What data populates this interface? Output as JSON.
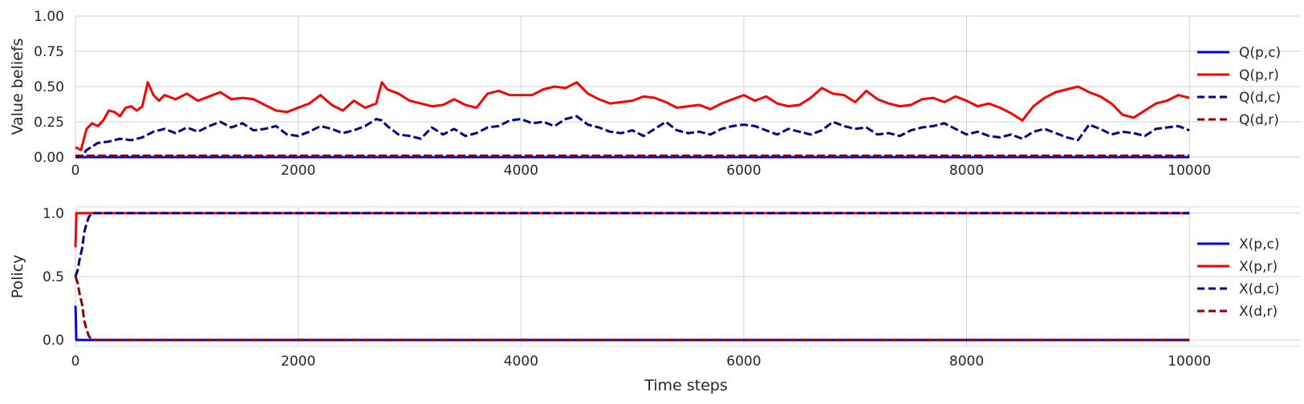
{
  "chart_data": [
    {
      "type": "line",
      "ylabel": "Value beliefs",
      "xlabel": "",
      "xlim": [
        0,
        11000
      ],
      "ylim": [
        0,
        1
      ],
      "x_ticks": [
        "0",
        "2000",
        "4000",
        "6000",
        "8000",
        "10000"
      ],
      "y_ticks": [
        "0.00",
        "0.25",
        "0.50",
        "0.75",
        "1.00"
      ],
      "grid": true,
      "legend_position": "right",
      "series": [
        {
          "name": "Q(p,c)",
          "color": "#0000ff",
          "dash": "solid",
          "x": [
            0,
            10000
          ],
          "y": [
            0.0,
            0.0
          ]
        },
        {
          "name": "Q(p,r)",
          "color": "#ff0000",
          "dash": "solid",
          "x": [
            0,
            50,
            100,
            150,
            200,
            250,
            300,
            350,
            400,
            450,
            500,
            550,
            600,
            650,
            700,
            750,
            800,
            900,
            1000,
            1100,
            1200,
            1300,
            1400,
            1500,
            1600,
            1700,
            1800,
            1900,
            2000,
            2100,
            2200,
            2300,
            2400,
            2500,
            2600,
            2700,
            2750,
            2800,
            2900,
            3000,
            3100,
            3200,
            3300,
            3400,
            3500,
            3600,
            3700,
            3800,
            3900,
            4000,
            4100,
            4200,
            4300,
            4400,
            4500,
            4600,
            4700,
            4800,
            4900,
            5000,
            5100,
            5200,
            5300,
            5400,
            5500,
            5600,
            5700,
            5800,
            5900,
            6000,
            6100,
            6200,
            6300,
            6400,
            6500,
            6600,
            6700,
            6800,
            6900,
            7000,
            7100,
            7200,
            7300,
            7400,
            7500,
            7600,
            7700,
            7800,
            7900,
            8000,
            8100,
            8200,
            8300,
            8400,
            8500,
            8600,
            8700,
            8800,
            8900,
            9000,
            9100,
            9200,
            9300,
            9400,
            9500,
            9600,
            9700,
            9800,
            9900,
            10000
          ],
          "y": [
            0.07,
            0.05,
            0.2,
            0.24,
            0.22,
            0.26,
            0.33,
            0.32,
            0.29,
            0.35,
            0.36,
            0.33,
            0.36,
            0.53,
            0.44,
            0.4,
            0.44,
            0.41,
            0.45,
            0.4,
            0.43,
            0.46,
            0.41,
            0.42,
            0.41,
            0.37,
            0.33,
            0.32,
            0.35,
            0.38,
            0.44,
            0.37,
            0.33,
            0.4,
            0.35,
            0.38,
            0.53,
            0.48,
            0.45,
            0.4,
            0.38,
            0.36,
            0.37,
            0.41,
            0.37,
            0.35,
            0.45,
            0.47,
            0.44,
            0.44,
            0.44,
            0.48,
            0.5,
            0.49,
            0.53,
            0.45,
            0.41,
            0.38,
            0.39,
            0.4,
            0.43,
            0.42,
            0.39,
            0.35,
            0.36,
            0.37,
            0.34,
            0.38,
            0.41,
            0.44,
            0.4,
            0.43,
            0.38,
            0.36,
            0.37,
            0.42,
            0.49,
            0.45,
            0.44,
            0.39,
            0.47,
            0.41,
            0.38,
            0.36,
            0.37,
            0.41,
            0.42,
            0.39,
            0.43,
            0.4,
            0.36,
            0.38,
            0.35,
            0.31,
            0.26,
            0.36,
            0.42,
            0.46,
            0.48,
            0.5,
            0.46,
            0.43,
            0.38,
            0.3,
            0.28,
            0.33,
            0.38,
            0.4,
            0.44,
            0.42
          ]
        },
        {
          "name": "Q(d,c)",
          "color": "#00008b",
          "dash": "dashed",
          "x": [
            0,
            50,
            100,
            200,
            300,
            400,
            500,
            600,
            700,
            800,
            900,
            1000,
            1100,
            1200,
            1300,
            1400,
            1500,
            1600,
            1700,
            1800,
            1900,
            2000,
            2100,
            2200,
            2300,
            2400,
            2500,
            2600,
            2700,
            2750,
            2800,
            2900,
            3000,
            3100,
            3200,
            3300,
            3400,
            3500,
            3600,
            3700,
            3800,
            3900,
            4000,
            4100,
            4200,
            4300,
            4400,
            4500,
            4600,
            4700,
            4800,
            4900,
            5000,
            5100,
            5200,
            5300,
            5400,
            5500,
            5600,
            5700,
            5800,
            5900,
            6000,
            6100,
            6200,
            6300,
            6400,
            6500,
            6600,
            6700,
            6800,
            6900,
            7000,
            7100,
            7200,
            7300,
            7400,
            7500,
            7600,
            7700,
            7800,
            7900,
            8000,
            8100,
            8200,
            8300,
            8400,
            8500,
            8600,
            8700,
            8800,
            8900,
            9000,
            9100,
            9200,
            9300,
            9400,
            9500,
            9600,
            9700,
            9800,
            9900,
            10000
          ],
          "y": [
            0.0,
            0.0,
            0.05,
            0.1,
            0.11,
            0.13,
            0.12,
            0.14,
            0.18,
            0.2,
            0.17,
            0.21,
            0.18,
            0.22,
            0.25,
            0.21,
            0.24,
            0.19,
            0.2,
            0.22,
            0.16,
            0.15,
            0.18,
            0.22,
            0.2,
            0.17,
            0.19,
            0.22,
            0.27,
            0.26,
            0.22,
            0.16,
            0.15,
            0.13,
            0.21,
            0.16,
            0.2,
            0.15,
            0.17,
            0.21,
            0.22,
            0.26,
            0.27,
            0.24,
            0.25,
            0.22,
            0.27,
            0.29,
            0.23,
            0.21,
            0.18,
            0.17,
            0.19,
            0.15,
            0.2,
            0.25,
            0.19,
            0.17,
            0.18,
            0.16,
            0.2,
            0.22,
            0.23,
            0.22,
            0.19,
            0.16,
            0.2,
            0.18,
            0.16,
            0.19,
            0.25,
            0.22,
            0.2,
            0.21,
            0.16,
            0.17,
            0.15,
            0.19,
            0.21,
            0.22,
            0.24,
            0.2,
            0.16,
            0.18,
            0.15,
            0.14,
            0.16,
            0.13,
            0.18,
            0.2,
            0.17,
            0.14,
            0.12,
            0.23,
            0.2,
            0.16,
            0.18,
            0.17,
            0.15,
            0.2,
            0.21,
            0.22,
            0.19
          ]
        },
        {
          "name": "Q(d,r)",
          "color": "#8b0000",
          "dash": "dashed",
          "x": [
            0,
            10000
          ],
          "y": [
            0.01,
            0.01
          ]
        }
      ]
    },
    {
      "type": "line",
      "ylabel": "Policy",
      "xlabel": "Time steps",
      "xlim": [
        0,
        11000
      ],
      "ylim": [
        -0.05,
        1.05
      ],
      "x_ticks": [
        "0",
        "2000",
        "4000",
        "6000",
        "8000",
        "10000"
      ],
      "y_ticks": [
        "0.0",
        "0.5",
        "1.0"
      ],
      "grid": true,
      "legend_position": "right",
      "series": [
        {
          "name": "X(p,c)",
          "color": "#0000ff",
          "dash": "solid",
          "x": [
            0,
            3,
            8,
            10000
          ],
          "y": [
            0.27,
            0.2,
            0.0,
            0.0
          ]
        },
        {
          "name": "X(p,r)",
          "color": "#ff0000",
          "dash": "solid",
          "x": [
            0,
            3,
            8,
            10000
          ],
          "y": [
            0.73,
            0.8,
            1.0,
            1.0
          ]
        },
        {
          "name": "X(d,c)",
          "color": "#00008b",
          "dash": "dashed",
          "x": [
            0,
            20,
            40,
            60,
            80,
            100,
            120,
            150,
            10000
          ],
          "y": [
            0.5,
            0.55,
            0.65,
            0.72,
            0.85,
            0.92,
            0.97,
            1.0,
            1.0
          ]
        },
        {
          "name": "X(d,r)",
          "color": "#8b0000",
          "dash": "dashed",
          "x": [
            0,
            20,
            40,
            60,
            80,
            100,
            120,
            150,
            10000
          ],
          "y": [
            0.5,
            0.45,
            0.35,
            0.28,
            0.15,
            0.08,
            0.03,
            0.0,
            0.0
          ]
        }
      ]
    }
  ]
}
